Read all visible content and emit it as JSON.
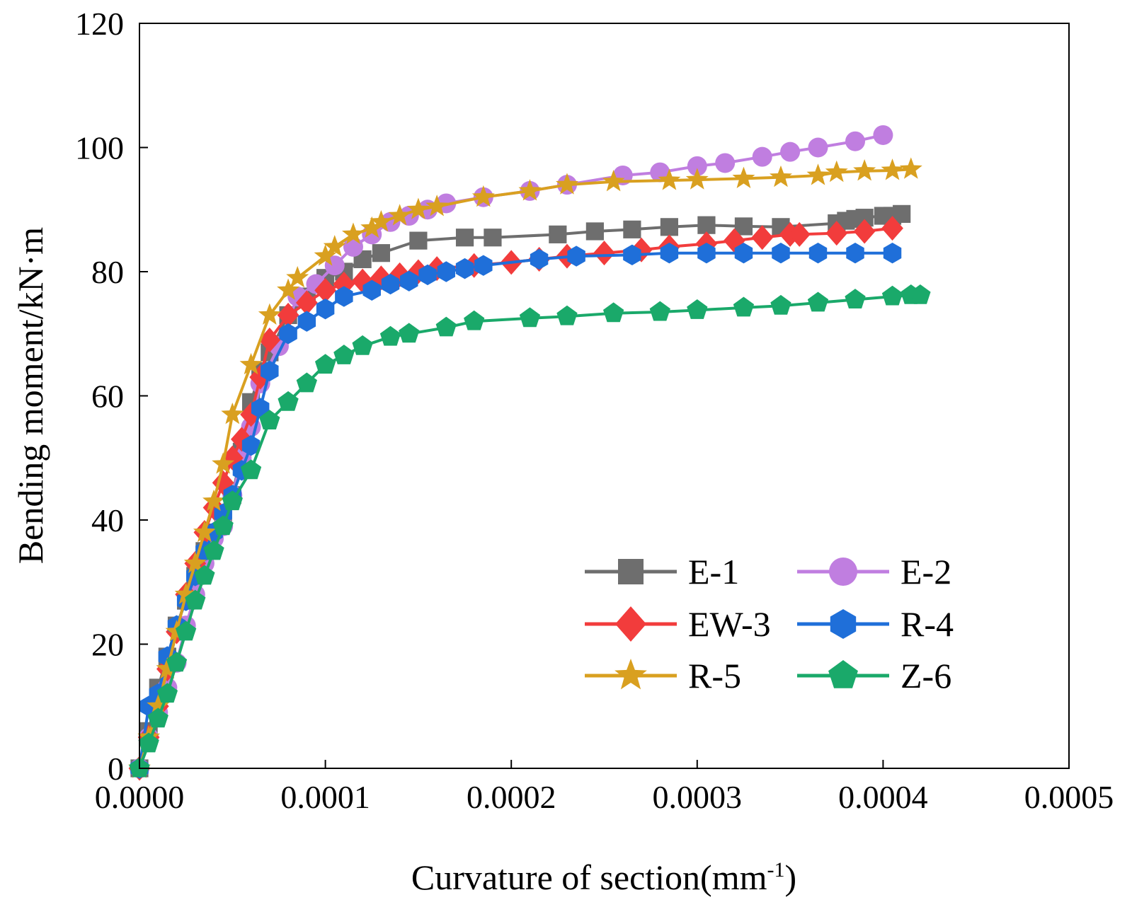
{
  "chart_data": {
    "type": "line",
    "title": "",
    "xlabel": "Curvature of section(mm",
    "xlabel_sup": "-1",
    "xlabel_close": ")",
    "ylabel": "Bending moment/kN·m",
    "xlim": [
      0,
      0.0005
    ],
    "ylim": [
      0,
      120
    ],
    "xticks": [
      0,
      0.0001,
      0.0002,
      0.0003,
      0.0004,
      0.0005
    ],
    "xtick_labels": [
      "0.0000",
      "0.0001",
      "0.0002",
      "0.0003",
      "0.0004",
      "0.0005"
    ],
    "yticks": [
      0,
      20,
      40,
      60,
      80,
      100,
      120
    ],
    "ytick_labels": [
      "0",
      "20",
      "40",
      "60",
      "80",
      "100",
      "120"
    ],
    "legend_position": "bottom-right",
    "series": [
      {
        "name": "E-1",
        "color": "#6e6e6e",
        "marker": "square",
        "x": [
          0,
          5e-06,
          1e-05,
          1.5e-05,
          2e-05,
          2.5e-05,
          3e-05,
          3.5e-05,
          4e-05,
          4.5e-05,
          5e-05,
          5.5e-05,
          6e-05,
          6.5e-05,
          7e-05,
          8e-05,
          9e-05,
          0.0001,
          0.00011,
          0.00012,
          0.00013,
          0.00015,
          0.000175,
          0.00019,
          0.000225,
          0.000245,
          0.000265,
          0.000285,
          0.000305,
          0.000325,
          0.000345,
          0.000375,
          0.00038,
          0.000385,
          0.00039,
          0.0004,
          0.000405,
          0.00041
        ],
        "y": [
          0,
          6,
          13,
          18,
          23,
          27,
          31,
          35,
          38,
          41,
          44,
          51,
          59,
          64,
          67,
          73,
          76,
          79,
          80,
          82,
          83,
          85,
          85.5,
          85.5,
          86,
          86.5,
          86.8,
          87.2,
          87.5,
          87.3,
          87.2,
          87.8,
          88.2,
          88.5,
          88.7,
          89,
          89,
          89.3
        ]
      },
      {
        "name": "E-2",
        "color": "#c07ee0",
        "marker": "circle",
        "x": [
          0,
          5e-06,
          1e-05,
          1.5e-05,
          2e-05,
          2.5e-05,
          3e-05,
          3.5e-05,
          4e-05,
          4.5e-05,
          5e-05,
          5.5e-05,
          6e-05,
          6.5e-05,
          7.5e-05,
          8.5e-05,
          9.5e-05,
          0.000105,
          0.000115,
          0.000125,
          0.000135,
          0.000145,
          0.000155,
          0.000165,
          0.000185,
          0.00021,
          0.00023,
          0.00026,
          0.00028,
          0.0003,
          0.000315,
          0.000335,
          0.00035,
          0.000365,
          0.000385,
          0.0004
        ],
        "y": [
          0,
          5,
          9,
          13,
          17,
          23,
          28,
          33,
          37,
          39,
          44,
          50,
          55,
          62,
          68,
          76,
          78,
          81,
          84,
          86,
          88,
          89,
          90,
          91,
          92,
          93,
          94,
          95.5,
          96,
          97,
          97.5,
          98.5,
          99.3,
          100,
          101,
          102
        ]
      },
      {
        "name": "EW-3",
        "color": "#f23c3c",
        "marker": "diamond",
        "x": [
          0,
          5e-06,
          1e-05,
          1.5e-05,
          2e-05,
          2.5e-05,
          3e-05,
          3.5e-05,
          4e-05,
          4.5e-05,
          5e-05,
          5.5e-05,
          6e-05,
          6.5e-05,
          7e-05,
          8e-05,
          9e-05,
          0.0001,
          0.00011,
          0.00012,
          0.00013,
          0.00014,
          0.00015,
          0.00016,
          0.00018,
          0.0002,
          0.000215,
          0.00023,
          0.00025,
          0.00027,
          0.000285,
          0.000305,
          0.00032,
          0.000335,
          0.00035,
          0.000355,
          0.000375,
          0.00039,
          0.000405
        ],
        "y": [
          0,
          5,
          10,
          16,
          22,
          28,
          33,
          38,
          42,
          46,
          50,
          53,
          57,
          63,
          69,
          73,
          75,
          77,
          78,
          78.5,
          79,
          79.5,
          80,
          80.5,
          81,
          81.5,
          82,
          82.5,
          83,
          83.5,
          84,
          84.5,
          85,
          85.5,
          86,
          86,
          86.2,
          86.5,
          87
        ]
      },
      {
        "name": "R-4",
        "color": "#1f6fd9",
        "marker": "hexagon",
        "x": [
          0,
          5e-06,
          1e-05,
          1.5e-05,
          2e-05,
          2.5e-05,
          3e-05,
          3.5e-05,
          4e-05,
          4.5e-05,
          5e-05,
          5.5e-05,
          6e-05,
          6.5e-05,
          7e-05,
          8e-05,
          9e-05,
          0.0001,
          0.00011,
          0.000125,
          0.000135,
          0.000145,
          0.000155,
          0.000165,
          0.000175,
          0.000185,
          0.000215,
          0.000235,
          0.000265,
          0.000285,
          0.000305,
          0.000325,
          0.000345,
          0.000365,
          0.000385,
          0.000405
        ],
        "y": [
          0,
          10,
          12,
          18,
          23,
          27,
          31,
          35,
          38,
          41,
          44,
          48,
          52,
          58,
          64,
          70,
          72,
          74,
          76,
          77,
          78,
          78.5,
          79.5,
          80,
          80.5,
          81,
          82,
          82.5,
          82.7,
          83,
          83,
          83,
          83,
          83,
          83,
          83
        ]
      },
      {
        "name": "R-5",
        "color": "#d9a020",
        "marker": "star",
        "x": [
          0,
          5e-06,
          1e-05,
          1.5e-05,
          2e-05,
          2.5e-05,
          3e-05,
          3.5e-05,
          4e-05,
          4.5e-05,
          5e-05,
          6e-05,
          7e-05,
          8e-05,
          8.5e-05,
          0.0001,
          0.000105,
          0.000115,
          0.000125,
          0.00013,
          0.00014,
          0.00015,
          0.00016,
          0.000185,
          0.00021,
          0.00023,
          0.000255,
          0.000285,
          0.0003,
          0.000325,
          0.000345,
          0.000365,
          0.000375,
          0.00039,
          0.000405,
          0.000415
        ],
        "y": [
          0,
          5,
          10,
          16,
          22,
          28,
          33,
          38,
          43,
          49,
          57,
          65,
          73,
          77,
          79,
          82.5,
          84,
          86,
          87,
          88,
          89,
          90,
          90.5,
          92,
          93,
          94,
          94.5,
          94.7,
          94.8,
          95,
          95.2,
          95.5,
          96,
          96.2,
          96.3,
          96.5
        ]
      },
      {
        "name": "Z-6",
        "color": "#1aa96a",
        "marker": "pentagon",
        "x": [
          0,
          5e-06,
          1e-05,
          1.5e-05,
          2e-05,
          2.5e-05,
          3e-05,
          3.5e-05,
          4e-05,
          4.5e-05,
          5e-05,
          6e-05,
          7e-05,
          8e-05,
          9e-05,
          0.0001,
          0.00011,
          0.00012,
          0.000135,
          0.000145,
          0.000165,
          0.00018,
          0.00021,
          0.00023,
          0.000255,
          0.00028,
          0.0003,
          0.000325,
          0.000345,
          0.000365,
          0.000385,
          0.000405,
          0.000415,
          0.00042
        ],
        "y": [
          0,
          4,
          8,
          12,
          17,
          22,
          27,
          31,
          35,
          39,
          43,
          48,
          56,
          59,
          62,
          65,
          66.5,
          68,
          69.5,
          70,
          71,
          72,
          72.5,
          72.8,
          73.3,
          73.5,
          73.8,
          74.2,
          74.5,
          75,
          75.5,
          76,
          76.2,
          76.2
        ]
      }
    ]
  }
}
